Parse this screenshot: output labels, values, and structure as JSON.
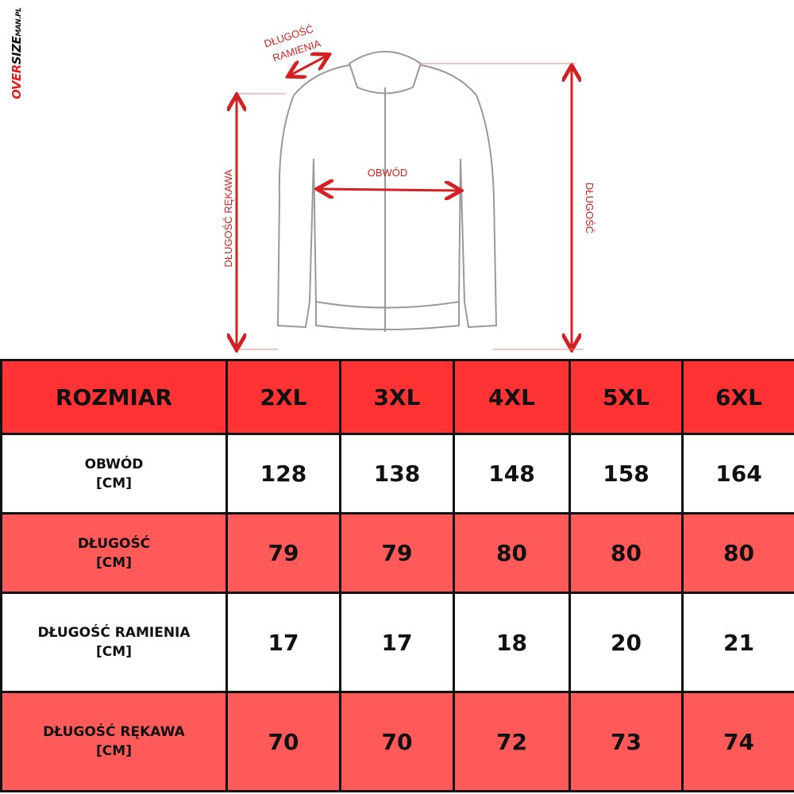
{
  "logo": {
    "part1": "OVER",
    "part2": "SIZE",
    "part3": "MAN.PL"
  },
  "diagram": {
    "labels": {
      "shoulder_line1": "DŁUGOŚĆ",
      "shoulder_line2": "RAMIENIA",
      "chest": "OBWÓD",
      "length": "DŁUGOŚĆ",
      "sleeve": "DŁUGOŚĆ RĘKAWA"
    },
    "arrow_color": "#d42020"
  },
  "colors": {
    "header": "#ff3333",
    "pink_row": "#ff5a5a",
    "white_row": "#ffffff"
  },
  "table": {
    "header": [
      "ROZMIAR",
      "2XL",
      "3XL",
      "4XL",
      "5XL",
      "6XL"
    ],
    "rows": [
      {
        "name": "OBWÓD",
        "unit": "[CM]",
        "values": [
          "128",
          "138",
          "148",
          "158",
          "164"
        ]
      },
      {
        "name": "DŁUGOŚĆ",
        "unit": "[CM]",
        "values": [
          "79",
          "79",
          "80",
          "80",
          "80"
        ]
      },
      {
        "name": "DŁUGOŚĆ RAMIENIA",
        "unit": "[CM]",
        "values": [
          "17",
          "17",
          "18",
          "20",
          "21"
        ]
      },
      {
        "name": "DŁUGOŚĆ RĘKAWA",
        "unit": "[CM]",
        "values": [
          "70",
          "70",
          "72",
          "73",
          "74"
        ]
      }
    ]
  }
}
